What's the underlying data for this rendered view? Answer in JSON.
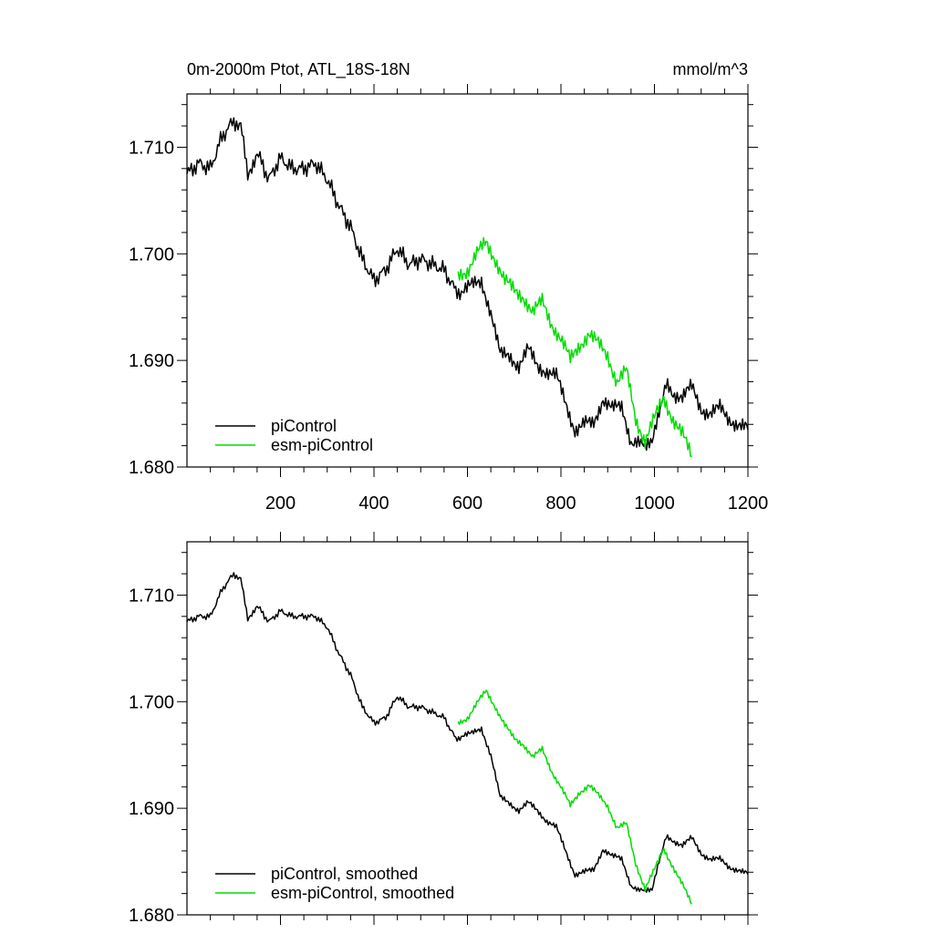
{
  "chart_data": [
    {
      "type": "line",
      "title": "0m-2000m Ptot, ATL_18S-18N",
      "units": "mmol/m^3",
      "xlim": [
        0,
        1200
      ],
      "ylim": [
        1.68,
        1.715
      ],
      "x_ticks": [
        "200",
        "400",
        "600",
        "800",
        "1000",
        "1200"
      ],
      "y_ticks": [
        "1.680",
        "1.690",
        "1.700",
        "1.710"
      ],
      "legend_position": "bottom-left",
      "series": [
        {
          "name": "piControl",
          "color": "#000000",
          "x": [
            0,
            25,
            50,
            75,
            100,
            115,
            130,
            150,
            175,
            200,
            225,
            250,
            275,
            300,
            325,
            350,
            375,
            400,
            425,
            450,
            475,
            500,
            525,
            550,
            575,
            590,
            610,
            630,
            650,
            670,
            690,
            710,
            730,
            750,
            770,
            790,
            810,
            830,
            850,
            870,
            890,
            910,
            930,
            950,
            965,
            980,
            995,
            1010,
            1025,
            1040,
            1060,
            1080,
            1100,
            1120,
            1140,
            1160,
            1180,
            1200
          ],
          "y": [
            1.7075,
            1.7085,
            1.708,
            1.711,
            1.7125,
            1.712,
            1.7075,
            1.7095,
            1.707,
            1.709,
            1.708,
            1.708,
            1.7085,
            1.707,
            1.7045,
            1.7025,
            1.6995,
            1.6975,
            1.6985,
            1.7005,
            1.699,
            1.6995,
            1.699,
            1.6985,
            1.6965,
            1.6965,
            1.697,
            1.6975,
            1.6945,
            1.6905,
            1.6905,
            1.6895,
            1.691,
            1.6895,
            1.689,
            1.6885,
            1.686,
            1.6835,
            1.684,
            1.684,
            1.6865,
            1.6855,
            1.6855,
            1.6825,
            1.682,
            1.6825,
            1.682,
            1.6855,
            1.6875,
            1.687,
            1.6865,
            1.6875,
            1.6855,
            1.685,
            1.6855,
            1.6845,
            1.684,
            1.6835
          ]
        },
        {
          "name": "esm-piControl",
          "color": "#00dd00",
          "x": [
            580,
            600,
            620,
            640,
            660,
            680,
            700,
            720,
            740,
            760,
            780,
            800,
            820,
            840,
            860,
            880,
            900,
            920,
            940,
            960,
            980,
            1000,
            1020,
            1040,
            1060,
            1080
          ],
          "y": [
            1.698,
            1.6985,
            1.7,
            1.701,
            1.6995,
            1.6975,
            1.6965,
            1.696,
            1.6945,
            1.6955,
            1.6935,
            1.692,
            1.69,
            1.6915,
            1.6925,
            1.6915,
            1.6905,
            1.688,
            1.689,
            1.6845,
            1.6825,
            1.6845,
            1.6865,
            1.6845,
            1.683,
            1.681
          ]
        }
      ]
    },
    {
      "type": "line",
      "xlim": [
        0,
        1200
      ],
      "ylim": [
        1.68,
        1.715
      ],
      "x_ticks": [],
      "y_ticks": [
        "1.680",
        "1.690",
        "1.700",
        "1.710"
      ],
      "legend_position": "bottom-left",
      "series": [
        {
          "name": "piControl, smoothed",
          "color": "#000000",
          "x": [
            0,
            25,
            50,
            75,
            100,
            115,
            130,
            150,
            175,
            200,
            225,
            250,
            275,
            300,
            325,
            350,
            375,
            400,
            425,
            450,
            475,
            500,
            525,
            550,
            575,
            590,
            610,
            630,
            650,
            670,
            690,
            710,
            730,
            750,
            770,
            790,
            810,
            830,
            850,
            870,
            890,
            910,
            930,
            950,
            965,
            980,
            995,
            1010,
            1025,
            1040,
            1060,
            1080,
            1100,
            1120,
            1140,
            1160,
            1180,
            1200
          ],
          "y": [
            1.7075,
            1.708,
            1.708,
            1.7105,
            1.712,
            1.7115,
            1.7078,
            1.709,
            1.7075,
            1.7085,
            1.708,
            1.708,
            1.708,
            1.707,
            1.7045,
            1.7025,
            1.6995,
            1.698,
            1.6985,
            1.7005,
            1.6995,
            1.6995,
            1.699,
            1.6985,
            1.6965,
            1.6968,
            1.697,
            1.6975,
            1.695,
            1.691,
            1.6905,
            1.6898,
            1.6905,
            1.6898,
            1.6888,
            1.6882,
            1.686,
            1.6838,
            1.684,
            1.6842,
            1.6862,
            1.6855,
            1.6852,
            1.6828,
            1.6822,
            1.6825,
            1.6822,
            1.6852,
            1.6872,
            1.687,
            1.6865,
            1.6872,
            1.6858,
            1.6852,
            1.6852,
            1.6845,
            1.6842,
            1.6838
          ]
        },
        {
          "name": "esm-piControl, smoothed",
          "color": "#00dd00",
          "x": [
            580,
            600,
            620,
            640,
            660,
            680,
            700,
            720,
            740,
            760,
            780,
            800,
            820,
            840,
            860,
            880,
            900,
            920,
            940,
            960,
            980,
            1000,
            1020,
            1040,
            1060,
            1080
          ],
          "y": [
            1.698,
            1.6985,
            1.6998,
            1.701,
            1.6995,
            1.6978,
            1.6965,
            1.696,
            1.6948,
            1.6955,
            1.6935,
            1.692,
            1.6902,
            1.6915,
            1.6922,
            1.6912,
            1.6902,
            1.6882,
            1.6885,
            1.6848,
            1.6825,
            1.6842,
            1.6862,
            1.6845,
            1.6828,
            1.681
          ]
        }
      ]
    }
  ]
}
